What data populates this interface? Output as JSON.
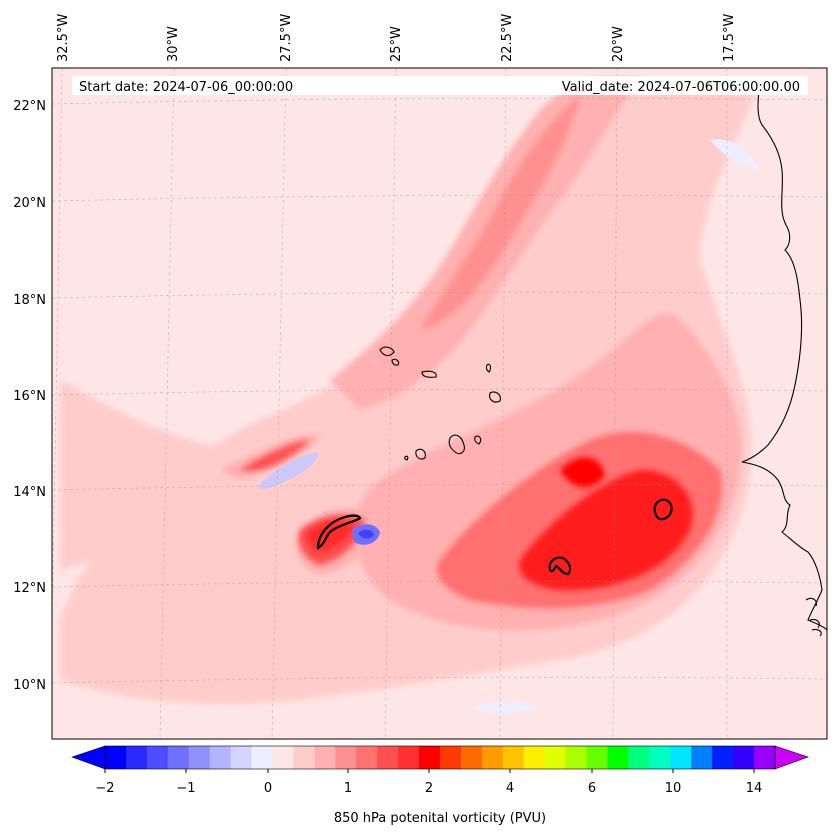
{
  "header": {
    "start_date": "Start date: 2024-07-06_00:00:00",
    "valid_date": "Valid_date: 2024-07-06T06:00:00.00"
  },
  "lon_labels": [
    "32.5°W",
    "30°W",
    "27.5°W",
    "25°W",
    "22.5°W",
    "20°W",
    "17.5°W"
  ],
  "lat_labels": [
    "22°N",
    "20°N",
    "18°N",
    "16°N",
    "14°N",
    "12°N",
    "10°N"
  ],
  "colorbar": {
    "tick_labels": [
      "−2",
      "−1",
      "0",
      "1",
      "2",
      "4",
      "6",
      "10",
      "14"
    ],
    "label": "850 hPa potenital vorticity (PVU)",
    "colors": [
      "#0000ff",
      "#2a2aff",
      "#4d4dff",
      "#7070ff",
      "#9090ff",
      "#b3b3ff",
      "#d4d4ff",
      "#eeeeff",
      "#ffe6e6",
      "#ffcccc",
      "#ffb0b0",
      "#ff9090",
      "#ff7070",
      "#ff5050",
      "#ff3030",
      "#ff0000",
      "#ff3a00",
      "#ff6a00",
      "#ff9a00",
      "#ffc400",
      "#ffee00",
      "#e0ff00",
      "#aaff00",
      "#66ff00",
      "#00ff00",
      "#00ff80",
      "#00ffc0",
      "#00e6ff",
      "#0080ff",
      "#0020ff",
      "#3300ff",
      "#9900ff"
    ],
    "min_color": "#0000ff",
    "max_color": "#cc00ff"
  }
}
